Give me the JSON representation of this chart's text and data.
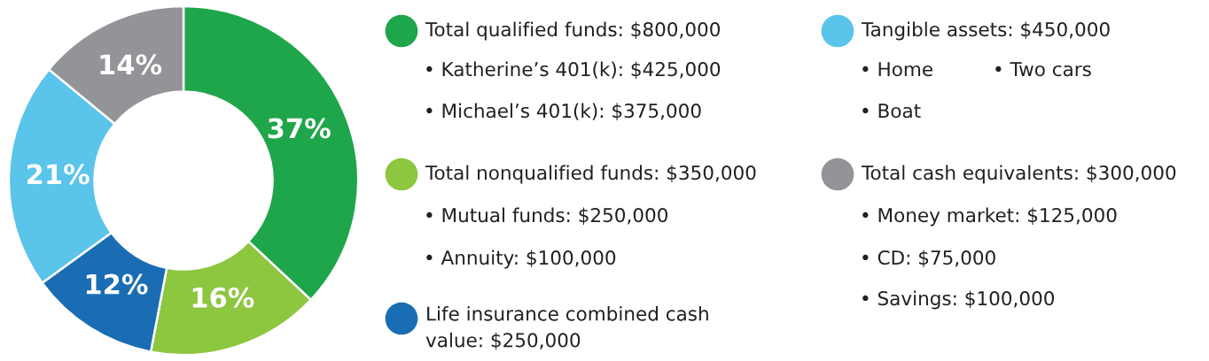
{
  "chart_data": {
    "type": "donut",
    "categories": [
      "Total qualified funds: $800,000",
      "Total nonqualified funds: $350,000",
      "Life insurance combined cash\nvalue: $250,000",
      "Tangible assets: $450,000",
      "Total cash equivalents: $300,000"
    ],
    "values": [
      37,
      16,
      12,
      21,
      14
    ],
    "value_labels": [
      "37%",
      "16%",
      "12%",
      "21%",
      "14%"
    ],
    "colors": [
      "#1fa54a",
      "#8dc63f",
      "#1a6db3",
      "#5bc4ea",
      "#929497"
    ],
    "legend": "right",
    "annotations": [
      "• Katherine’s 401(k): $425,000",
      "• Michael’s 401(k): $375,000",
      "• Mutual funds: $250,000",
      "• Annuity: $100,000",
      "• Home",
      "• Two cars",
      "• Boat",
      "• Money market: $125,000",
      "• CD: $75,000",
      "• Savings: $100,000"
    ]
  }
}
